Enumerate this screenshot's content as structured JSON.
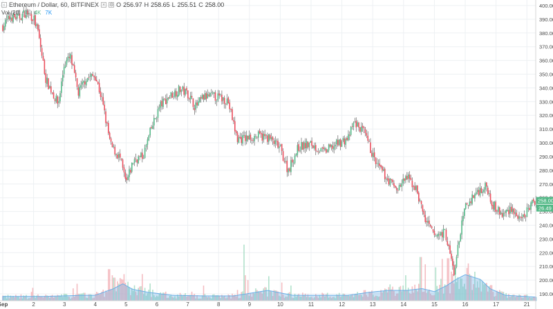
{
  "header": {
    "symbol": "Ethereum / Dollar, 60, BITFINEX",
    "o_label": "O",
    "o_value": "256.97",
    "h_label": "H",
    "h_value": "258.65",
    "l_label": "L",
    "l_value": "255.51",
    "c_label": "C",
    "c_value": "258.00",
    "close_icon": "close-icon",
    "settings_icon": "settings-icon",
    "vol_label": "Vol (20)",
    "vol_value": "4K",
    "vol_ma_value": "7K"
  },
  "colors": {
    "up": "#53b987",
    "down": "#eb4d5c",
    "wick": "#4a4a4a",
    "volume_up": "#a3dcc2",
    "volume_down": "#f2b0b6",
    "volume_ma": "#6aaee6",
    "grid": "#edf0f3",
    "axis_text": "#4a4a4a",
    "price_tag": "#53b987",
    "volume_tag": "#53b987"
  },
  "chart_data": {
    "type": "candlestick",
    "title": "",
    "xlabel": "",
    "ylabel": "",
    "ylim": [
      185,
      402
    ],
    "y_ticks": [
      190,
      200,
      210,
      220,
      230,
      240,
      250,
      260,
      270,
      280,
      290,
      300,
      310,
      320,
      330,
      340,
      350,
      360,
      370,
      380,
      390,
      400
    ],
    "x_labels": [
      "Sep",
      "2",
      "3",
      "4",
      "5",
      "6",
      "7",
      "8",
      "9",
      "10",
      "11",
      "12",
      "13",
      "14",
      "15",
      "16",
      "17",
      "21"
    ],
    "x_label_day_index": [
      0,
      1,
      2,
      3,
      4,
      5,
      6,
      7,
      8,
      9,
      10,
      11,
      12,
      13,
      14,
      15,
      16,
      17.0
    ],
    "grid": true,
    "last_price": "258.00",
    "last_volume_label": "26.49",
    "close_anchors": [
      [
        0.0,
        385
      ],
      [
        0.25,
        392
      ],
      [
        0.5,
        391
      ],
      [
        0.75,
        395
      ],
      [
        1.0,
        391
      ],
      [
        1.15,
        380
      ],
      [
        1.4,
        346
      ],
      [
        1.8,
        328
      ],
      [
        2.0,
        358
      ],
      [
        2.2,
        362
      ],
      [
        2.45,
        336
      ],
      [
        2.7,
        347
      ],
      [
        3.0,
        349
      ],
      [
        3.2,
        333
      ],
      [
        3.5,
        298
      ],
      [
        3.8,
        289
      ],
      [
        4.0,
        270
      ],
      [
        4.25,
        288
      ],
      [
        4.55,
        290
      ],
      [
        4.8,
        309
      ],
      [
        5.1,
        327
      ],
      [
        5.4,
        334
      ],
      [
        5.75,
        339
      ],
      [
        6.0,
        336
      ],
      [
        6.25,
        326
      ],
      [
        6.5,
        333
      ],
      [
        6.75,
        334
      ],
      [
        7.0,
        333
      ],
      [
        7.3,
        331
      ],
      [
        7.6,
        303
      ],
      [
        7.85,
        303
      ],
      [
        8.25,
        305
      ],
      [
        8.6,
        304
      ],
      [
        9.0,
        296
      ],
      [
        9.25,
        280
      ],
      [
        9.6,
        297
      ],
      [
        10.0,
        299
      ],
      [
        10.4,
        293
      ],
      [
        10.9,
        300
      ],
      [
        11.2,
        303
      ],
      [
        11.4,
        315
      ],
      [
        11.7,
        308
      ],
      [
        11.9,
        297
      ],
      [
        12.1,
        285
      ],
      [
        12.5,
        273
      ],
      [
        12.8,
        266
      ],
      [
        13.1,
        275
      ],
      [
        13.4,
        267
      ],
      [
        13.7,
        244
      ],
      [
        14.0,
        232
      ],
      [
        14.35,
        235
      ],
      [
        14.65,
        204
      ],
      [
        14.8,
        230
      ],
      [
        15.0,
        253
      ],
      [
        15.4,
        265
      ],
      [
        15.7,
        268
      ],
      [
        15.9,
        255
      ],
      [
        16.2,
        247
      ],
      [
        16.5,
        253
      ],
      [
        16.8,
        242
      ],
      [
        17.1,
        254
      ],
      [
        17.3,
        258
      ]
    ],
    "volume_anchors": [
      [
        0.0,
        7
      ],
      [
        1.3,
        7
      ],
      [
        2.6,
        9
      ],
      [
        3.0,
        9
      ],
      [
        3.6,
        20
      ],
      [
        3.9,
        28
      ],
      [
        4.2,
        19
      ],
      [
        4.7,
        14
      ],
      [
        5.5,
        9
      ],
      [
        6.5,
        8
      ],
      [
        7.5,
        8
      ],
      [
        8.1,
        13
      ],
      [
        8.6,
        17
      ],
      [
        9.4,
        9
      ],
      [
        10.3,
        9
      ],
      [
        11.2,
        9
      ],
      [
        11.9,
        14
      ],
      [
        12.5,
        17
      ],
      [
        13.1,
        17
      ],
      [
        13.6,
        20
      ],
      [
        14.0,
        15
      ],
      [
        14.4,
        25
      ],
      [
        14.7,
        35
      ],
      [
        15.0,
        43
      ],
      [
        15.5,
        35
      ],
      [
        15.8,
        20
      ],
      [
        16.3,
        9
      ],
      [
        17.3,
        6
      ]
    ],
    "volume_spikes": [
      [
        3.45,
        52
      ],
      [
        3.55,
        42
      ],
      [
        3.62,
        38
      ],
      [
        3.72,
        32
      ],
      [
        7.85,
        42
      ],
      [
        7.95,
        34
      ],
      [
        13.55,
        72
      ],
      [
        13.7,
        60
      ],
      [
        14.05,
        55
      ],
      [
        14.45,
        70
      ],
      [
        14.55,
        48
      ],
      [
        14.2,
        36
      ],
      [
        2.4,
        28
      ],
      [
        9.05,
        30
      ]
    ],
    "candle_count": 410,
    "day_count": 17.3
  }
}
